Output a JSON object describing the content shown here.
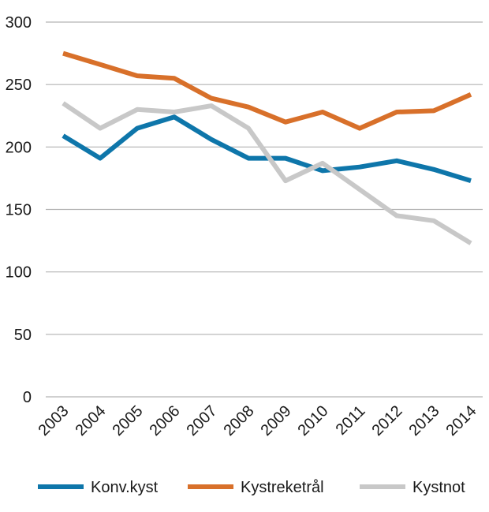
{
  "chart_data": {
    "type": "line",
    "title": "",
    "xlabel": "",
    "ylabel": "",
    "categories": [
      "2003",
      "2004",
      "2005",
      "2006",
      "2007",
      "2008",
      "2009",
      "2010",
      "2011",
      "2012",
      "2013",
      "2014"
    ],
    "ylim": [
      0,
      300
    ],
    "yticks": [
      0,
      50,
      100,
      150,
      200,
      250,
      300
    ],
    "grid": "horizontal",
    "legend_position": "bottom",
    "series": [
      {
        "name": "Konv.kyst",
        "color": "#0e76aa",
        "values": [
          209,
          191,
          215,
          224,
          206,
          191,
          191,
          181,
          184,
          189,
          182,
          173
        ]
      },
      {
        "name": "Kystreketrål",
        "color": "#d8702a",
        "values": [
          275,
          266,
          257,
          255,
          239,
          232,
          220,
          228,
          215,
          228,
          229,
          242
        ]
      },
      {
        "name": "Kystnot",
        "color": "#c8c8c8",
        "values": [
          235,
          215,
          230,
          228,
          233,
          215,
          173,
          187,
          166,
          145,
          141,
          123
        ]
      }
    ]
  }
}
